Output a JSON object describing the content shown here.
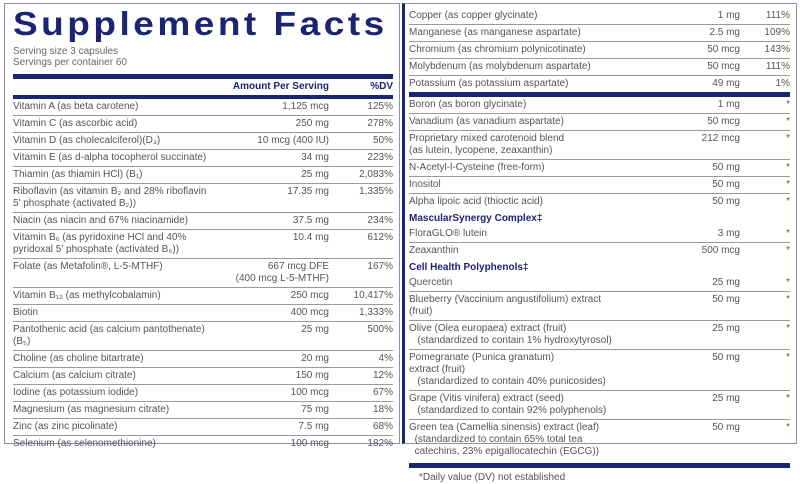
{
  "title": "Supplement Facts",
  "serving_size": "Serving size  3 capsules",
  "servings_per_container": "Servings per container  60",
  "header": {
    "amount": "Amount Per Serving",
    "dv": "%DV"
  },
  "colors": {
    "navy": "#1a2472",
    "text": "#555555"
  },
  "left_rows": [
    {
      "name": "Vitamin A (as beta carotene)",
      "amount": "1,125 mcg",
      "dv": "125%"
    },
    {
      "name": "Vitamin C (as ascorbic acid)",
      "amount": "250 mg",
      "dv": "278%"
    },
    {
      "name": "Vitamin D (as cholecalciferol)(D₃)",
      "amount": "10 mcg (400 IU)",
      "dv": "50%"
    },
    {
      "name": "Vitamin E (as d-alpha tocopherol succinate)",
      "amount": "34 mg",
      "dv": "223%"
    },
    {
      "name": "Thiamin (as thiamin HCl) (B₁)",
      "amount": "25 mg",
      "dv": "2,083%"
    },
    {
      "name": "Riboflavin (as vitamin B₂ and 28% riboflavin\n5' phosphate (activated B₂))",
      "amount": "17.35 mg",
      "dv": "1,335%"
    },
    {
      "name": "Niacin (as niacin and 67% niacinamide)",
      "amount": "37.5 mg",
      "dv": "234%"
    },
    {
      "name": "Vitamin B₆ (as pyridoxine HCl and 40%\npyridoxal 5' phosphate (activated B₆))",
      "amount": "10.4 mg",
      "dv": "612%"
    },
    {
      "name": "Folate (as Metafolin®, L-5-MTHF)",
      "amount": "667 mcg DFE\n(400 mcg L-5-MTHF)",
      "dv": "167%"
    },
    {
      "name": "Vitamin B₁₂ (as methylcobalamin)",
      "amount": "250 mcg",
      "dv": "10,417%"
    },
    {
      "name": "Biotin",
      "amount": "400 mcg",
      "dv": "1,333%"
    },
    {
      "name": "Pantothenic acid (as calcium pantothenate) (B₅)",
      "amount": "25 mg",
      "dv": "500%"
    },
    {
      "name": "Choline (as choline bitartrate)",
      "amount": "20 mg",
      "dv": "4%"
    },
    {
      "name": "Calcium (as calcium citrate)",
      "amount": "150 mg",
      "dv": "12%"
    },
    {
      "name": "Iodine (as potassium iodide)",
      "amount": "100 mcg",
      "dv": "67%"
    },
    {
      "name": "Magnesium (as magnesium citrate)",
      "amount": "75 mg",
      "dv": "18%"
    },
    {
      "name": "Zinc (as zinc picolinate)",
      "amount": "7.5 mg",
      "dv": "68%"
    },
    {
      "name": "Selenium (as selenomethionine)",
      "amount": "100 mcg",
      "dv": "182%"
    }
  ],
  "right_rows_a": [
    {
      "name": "Copper (as copper glycinate)",
      "amount": "1 mg",
      "dv": "111%"
    },
    {
      "name": "Manganese (as manganese aspartate)",
      "amount": "2.5 mg",
      "dv": "109%"
    },
    {
      "name": "Chromium (as chromium polynicotinate)",
      "amount": "50 mcg",
      "dv": "143%"
    },
    {
      "name": "Molybdenum (as molybdenum aspartate)",
      "amount": "50 mcg",
      "dv": "111%"
    },
    {
      "name": "Potassium (as potassium aspartate)",
      "amount": "49 mg",
      "dv": "1%"
    }
  ],
  "right_rows_b": [
    {
      "name": "Boron (as boron glycinate)",
      "amount": "1 mg",
      "dv": "*"
    },
    {
      "name": "Vanadium (as vanadium aspartate)",
      "amount": "50 mcg",
      "dv": "*"
    },
    {
      "name": "Proprietary mixed carotenoid blend\n(as lutein, lycopene, zeaxanthin)",
      "amount": "212 mcg",
      "dv": "*"
    },
    {
      "name": "N-Acetyl-l-Cysteine (free-form)",
      "amount": "50 mg",
      "dv": "*"
    },
    {
      "name": "Inositol",
      "amount": "50 mg",
      "dv": "*"
    },
    {
      "name": "Alpha lipoic acid (thioctic acid)",
      "amount": "50 mg",
      "dv": "*"
    },
    {
      "section": "MascularSynergy Complex‡"
    },
    {
      "name": "FloraGLO® lutein",
      "amount": "3 mg",
      "dv": "*"
    },
    {
      "name": "Zeaxanthin",
      "amount": "500 mcg",
      "dv": "*"
    },
    {
      "section": "Cell Health Polyphenols‡"
    },
    {
      "name": "Quercetin",
      "amount": "25 mg",
      "dv": "*"
    },
    {
      "name": "Blueberry (Vaccinium angustifolium) extract (fruit)",
      "amount": "50 mg",
      "dv": "*"
    },
    {
      "name": "Olive (Olea europaea) extract (fruit)\n   (standardized to contain 1% hydroxytyrosol)",
      "amount": "25 mg",
      "dv": "*"
    },
    {
      "name": "Pomegranate (Punica granatum)\nextract (fruit)\n   (standardized to contain 40% punicosides)",
      "amount": "50 mg",
      "dv": "*"
    },
    {
      "name": "Grape (Vitis vinifera) extract (seed)\n   (standardized to contain 92% polyphenols)",
      "amount": "25 mg",
      "dv": "*"
    },
    {
      "name": "Green tea (Camellia sinensis) extract (leaf)\n  (standardized to contain 65% total tea\n  catechins, 23% epigallocatechin (EGCG))",
      "amount": "50 mg",
      "dv": "*"
    }
  ],
  "footnote": "*Daily value (DV) not established"
}
